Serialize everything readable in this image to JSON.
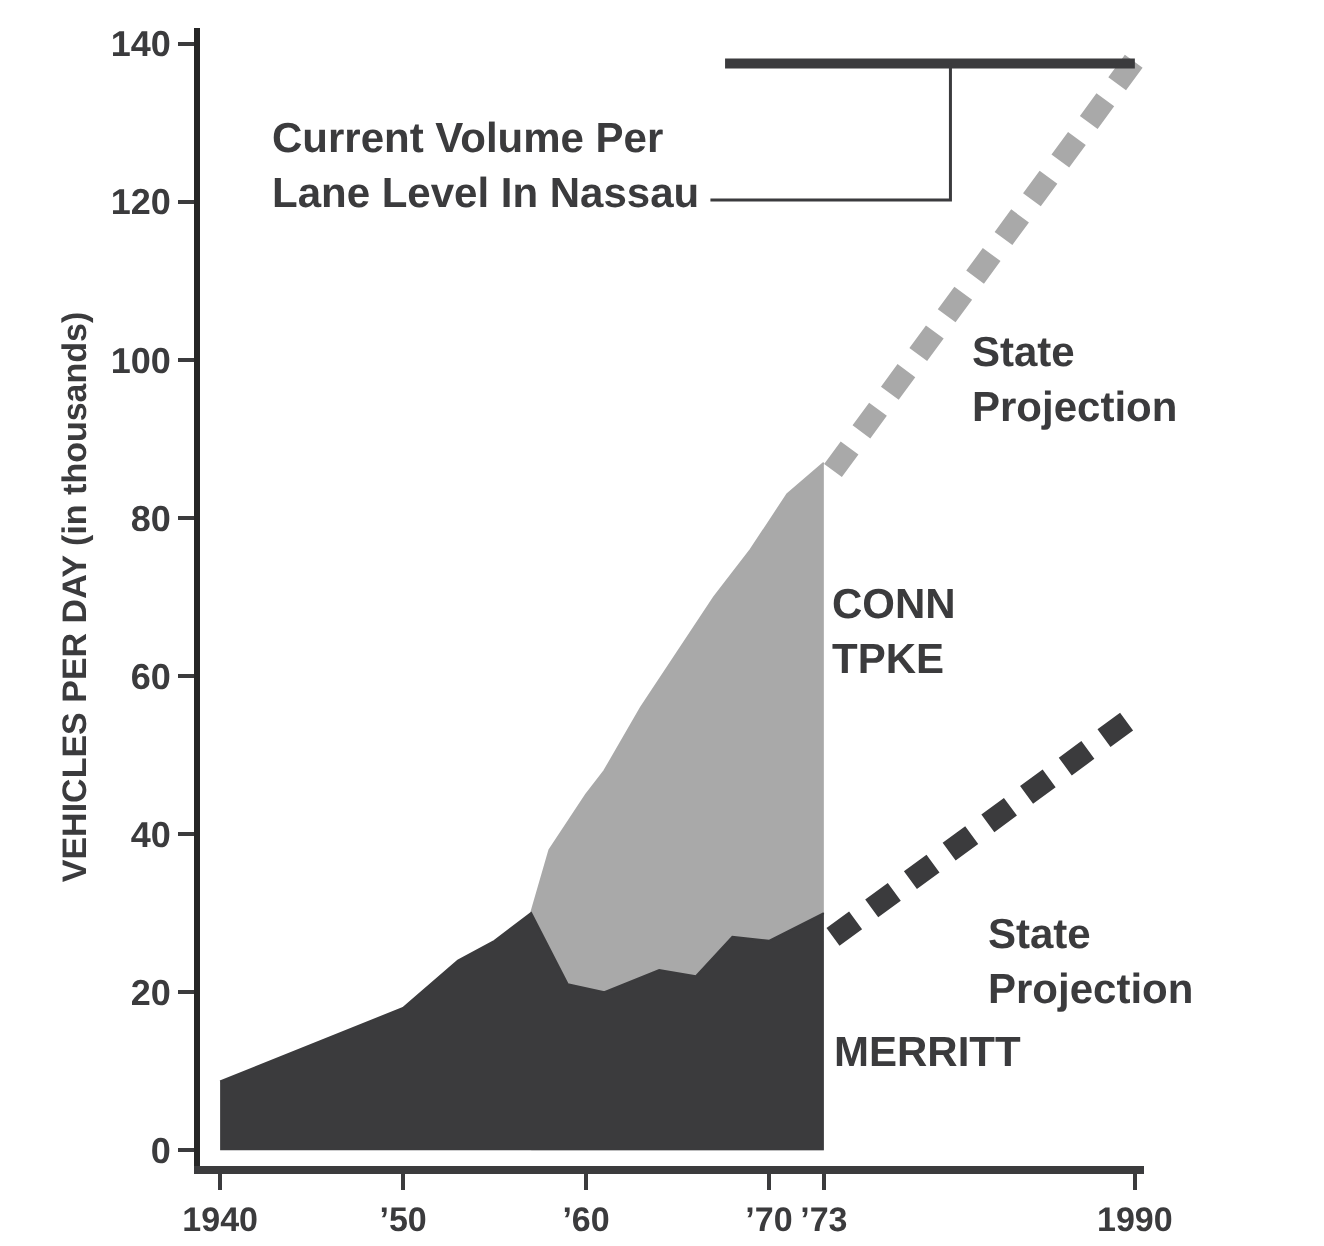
{
  "chart_data": {
    "type": "area",
    "ylabel": "VEHICLES PER DAY (in thousands)",
    "xlim": [
      1938.9,
      1990.5
    ],
    "ylim": [
      -2,
      142
    ],
    "xticks": [
      {
        "value": 1940,
        "label": "1940"
      },
      {
        "value": 1950,
        "label": "’50"
      },
      {
        "value": 1960,
        "label": "’60"
      },
      {
        "value": 1970,
        "label": "’70"
      },
      {
        "value": 1973,
        "label": "’73"
      },
      {
        "value": 1990,
        "label": "1990"
      }
    ],
    "yticks": [
      0,
      20,
      40,
      60,
      80,
      100,
      120,
      140
    ],
    "grid": false,
    "legend": false,
    "series": [
      {
        "name": "CONN TPKE",
        "color": "#a9a9a9",
        "x": [
          1957,
          1958,
          1960,
          1961,
          1963,
          1965,
          1967,
          1969,
          1971,
          1973
        ],
        "values": [
          30,
          38,
          45,
          48,
          56,
          63,
          70,
          76,
          83,
          87
        ]
      },
      {
        "name": "MERRITT",
        "color": "#3b3b3d",
        "x": [
          1940,
          1950,
          1953,
          1955,
          1957,
          1959,
          1961,
          1964,
          1966,
          1968,
          1970,
          1973
        ],
        "values": [
          8.7,
          18,
          24,
          26.5,
          30,
          21,
          20,
          22.8,
          22,
          27,
          26.5,
          30
        ]
      },
      {
        "name": "State Projection",
        "type": "line",
        "line_style": "dashed",
        "color": "#a9a9a9",
        "x": [
          1973.5,
          1990
        ],
        "values": [
          86,
          138
        ]
      },
      {
        "name": "State Projection",
        "type": "line",
        "line_style": "dashed",
        "color": "#3b3b3d",
        "x": [
          1973.5,
          1990
        ],
        "values": [
          27,
          55
        ]
      },
      {
        "name": "Current Volume Per Lane Level In Nassau",
        "type": "line",
        "line_style": "solid",
        "color": "#3b3b3d",
        "x": [
          1967.6,
          1990
        ],
        "values": [
          137.5,
          137.5
        ]
      }
    ]
  }
}
